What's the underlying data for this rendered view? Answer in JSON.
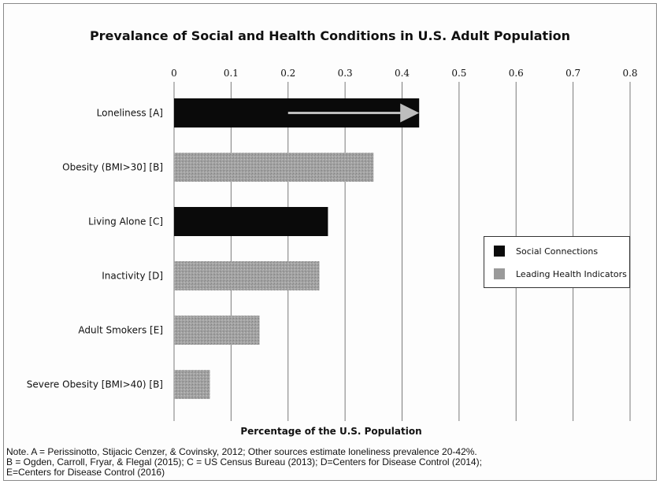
{
  "chart_data": {
    "type": "bar",
    "orientation": "horizontal",
    "title": "Prevalance of Social and Health Conditions in U.S. Adult Population",
    "xlabel": "Percentage of the U.S. Population",
    "ylabel": "",
    "xlim": [
      0,
      0.8
    ],
    "x_ticks": [
      "0",
      "0.1",
      "0.2",
      "0.3",
      "0.4",
      "0.5",
      "0.6",
      "0.7",
      "0.8"
    ],
    "grid": "vertical",
    "legend_position": "right",
    "categories": [
      "Loneliness [A]",
      "Obesity (BMI>30] [B]",
      "Living Alone [C]",
      "Inactivity [D]",
      "Adult Smokers [E]",
      "Severe Obesity [BMI>40) [B]"
    ],
    "values": [
      0.43,
      0.35,
      0.27,
      0.255,
      0.15,
      0.063
    ],
    "groups": [
      "Social Connections",
      "Leading Health Indicators",
      "Social Connections",
      "Leading Health Indicators",
      "Leading Health Indicators",
      "Leading Health Indicators"
    ],
    "range_arrow": {
      "category": "Loneliness [A]",
      "from": 0.2,
      "to": 0.43
    },
    "legend": [
      {
        "name": "Social Connections",
        "color": "#0a0a0a"
      },
      {
        "name": "Leading Health Indicators",
        "color": "#9a9a9a"
      }
    ]
  },
  "note": {
    "line1": "Note. A = Perissinotto, Stijacic Cenzer, & Covinsky, 2012; Other sources estimate loneliness prevalence 20-42%.",
    "line2": "B = Ogden, Carroll, Fryar, & Flegal (2015); C = US Census Bureau (2013); D=Centers for Disease Control (2014);",
    "line3": "E=Centers for Disease Control (2016)"
  }
}
